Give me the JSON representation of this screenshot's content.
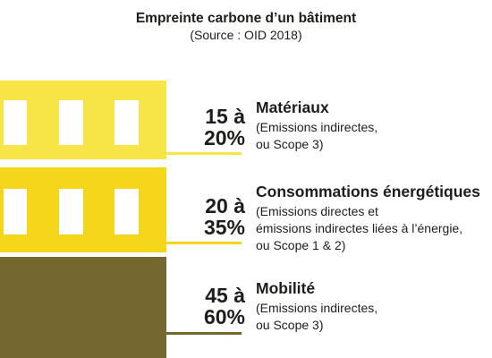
{
  "title": "Empreinte carbone d’un bâtiment",
  "subtitle": "(Source : OID 2018)",
  "colors": {
    "materiaux": "#f7e447",
    "energie": "#f5d61b",
    "mobilite": "#756730",
    "text": "#1d1d1b"
  },
  "categories": [
    {
      "pct_line1": "15 à",
      "pct_line2": "20%",
      "name": "Matériaux",
      "desc_lines": [
        "(Emissions indirectes,",
        "ou Scope 3)"
      ]
    },
    {
      "pct_line1": "20 à",
      "pct_line2": "35%",
      "name": "Consommations énergétiques",
      "desc_lines": [
        "(Emissions directes et",
        "émissions indirectes liées à l’énergie,",
        "ou Scope 1 & 2)"
      ]
    },
    {
      "pct_line1": "45 à",
      "pct_line2": "60%",
      "name": "Mobilité",
      "desc_lines": [
        "(Emissions indirectes,",
        "ou Scope 3)"
      ]
    }
  ]
}
